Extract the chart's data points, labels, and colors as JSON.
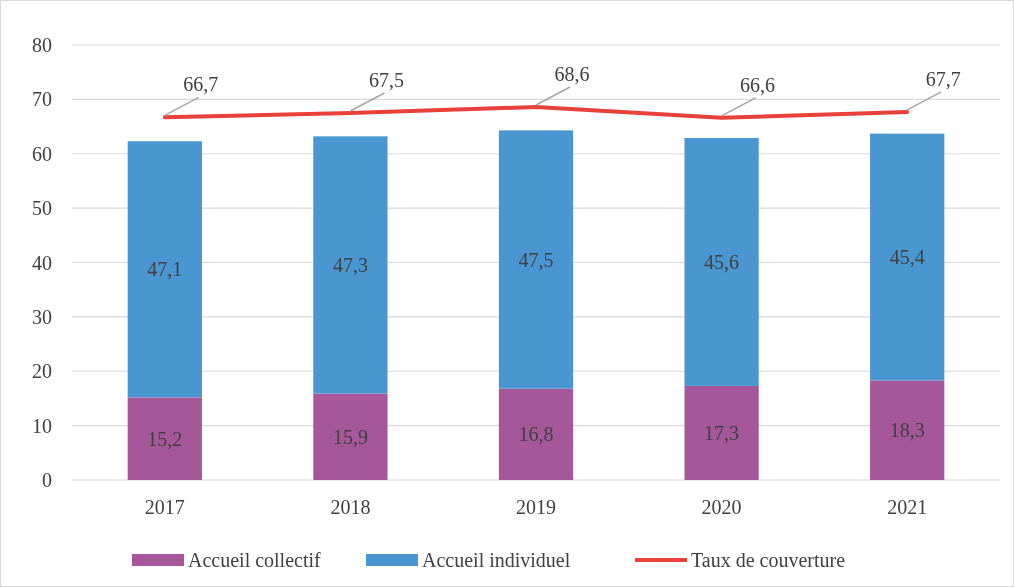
{
  "chart_data": {
    "type": "bar",
    "stacked": true,
    "categories": [
      "2017",
      "2018",
      "2019",
      "2020",
      "2021"
    ],
    "series": [
      {
        "name": "Accueil collectif",
        "color": "#a5579a",
        "values": [
          15.2,
          15.9,
          16.8,
          17.3,
          18.3
        ],
        "value_labels": [
          "15,2",
          "15,9",
          "16,8",
          "17,3",
          "18,3"
        ]
      },
      {
        "name": "Accueil individuel",
        "color": "#4a96d0",
        "values": [
          47.1,
          47.3,
          47.5,
          45.6,
          45.4
        ],
        "value_labels": [
          "47,1",
          "47,3",
          "47,5",
          "45,6",
          "45,4"
        ]
      },
      {
        "name": "Taux de couverture",
        "type": "line",
        "color": "#e8413a",
        "values": [
          66.7,
          67.5,
          68.6,
          66.6,
          67.7
        ],
        "value_labels": [
          "66,7",
          "67,5",
          "68,6",
          "66,6",
          "67,7"
        ]
      }
    ],
    "ylim": [
      0,
      80
    ],
    "yticks": [
      0,
      10,
      20,
      30,
      40,
      50,
      60,
      70,
      80
    ],
    "grid": "y",
    "legend": "bottom",
    "marker": "none",
    "line_style": "solid"
  }
}
